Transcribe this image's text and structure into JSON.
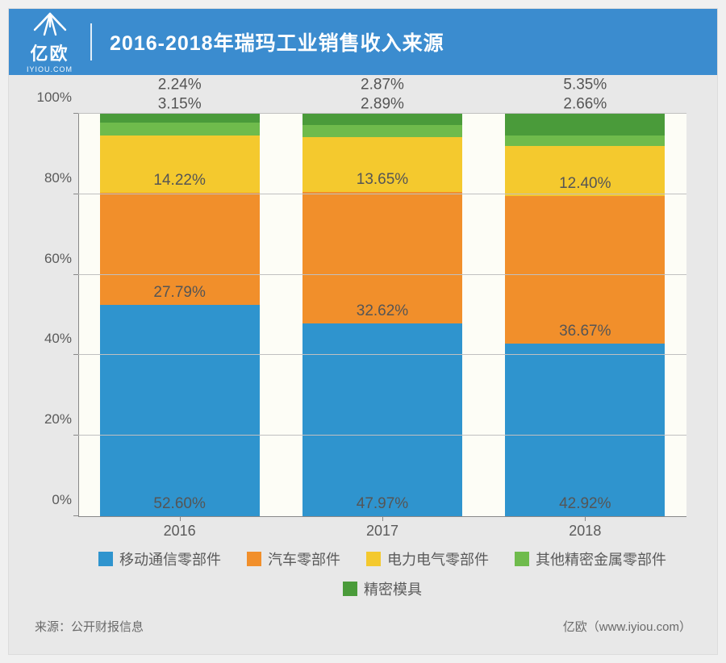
{
  "logo": {
    "cn": "亿欧",
    "en": "IYIOU.COM"
  },
  "title": "2016-2018年瑞玛工业销售收入来源",
  "chart": {
    "type": "stacked-bar-100",
    "background_color": "#fdfdf6",
    "plot_border_color": "#888888",
    "grid_color": "#c0c0c0",
    "axis_label_color": "#5a5a5a",
    "value_label_color": "#555555",
    "axis_fontsize": 17,
    "value_fontsize": 19,
    "legend_fontsize": 18,
    "y_ticks": [
      "0%",
      "20%",
      "40%",
      "60%",
      "80%",
      "100%"
    ],
    "categories": [
      "2016",
      "2017",
      "2018"
    ],
    "series": [
      {
        "name": "移动通信零部件",
        "color": "#2f94ce"
      },
      {
        "name": "汽车零部件",
        "color": "#f18f2b"
      },
      {
        "name": "电力电气零部件",
        "color": "#f4c92e"
      },
      {
        "name": "其他精密金属零部件",
        "color": "#6fbb4c"
      },
      {
        "name": "精密模具",
        "color": "#4a9b3a"
      }
    ],
    "data": [
      {
        "values": [
          52.6,
          27.79,
          14.22,
          3.15,
          2.24
        ],
        "labels": [
          "52.60%",
          "27.79%",
          "14.22%",
          "3.15%",
          "2.24%"
        ]
      },
      {
        "values": [
          47.97,
          32.62,
          13.65,
          2.89,
          2.87
        ],
        "labels": [
          "47.97%",
          "32.62%",
          "13.65%",
          "2.89%",
          "2.87%"
        ]
      },
      {
        "values": [
          42.92,
          36.67,
          12.4,
          2.66,
          5.35
        ],
        "labels": [
          "42.92%",
          "36.67%",
          "12.40%",
          "2.66%",
          "5.35%"
        ]
      }
    ],
    "bar_width_ratio": 0.78,
    "overflow_label_threshold_pct": 6
  },
  "footer": {
    "source_prefix": "来源：",
    "source": "公开财报信息",
    "credit": "亿欧（www.iyiou.com）"
  },
  "colors": {
    "header_bg": "#3b8ccf",
    "page_bg": "#e8e8e8",
    "card_border": "#dcdcdc"
  }
}
